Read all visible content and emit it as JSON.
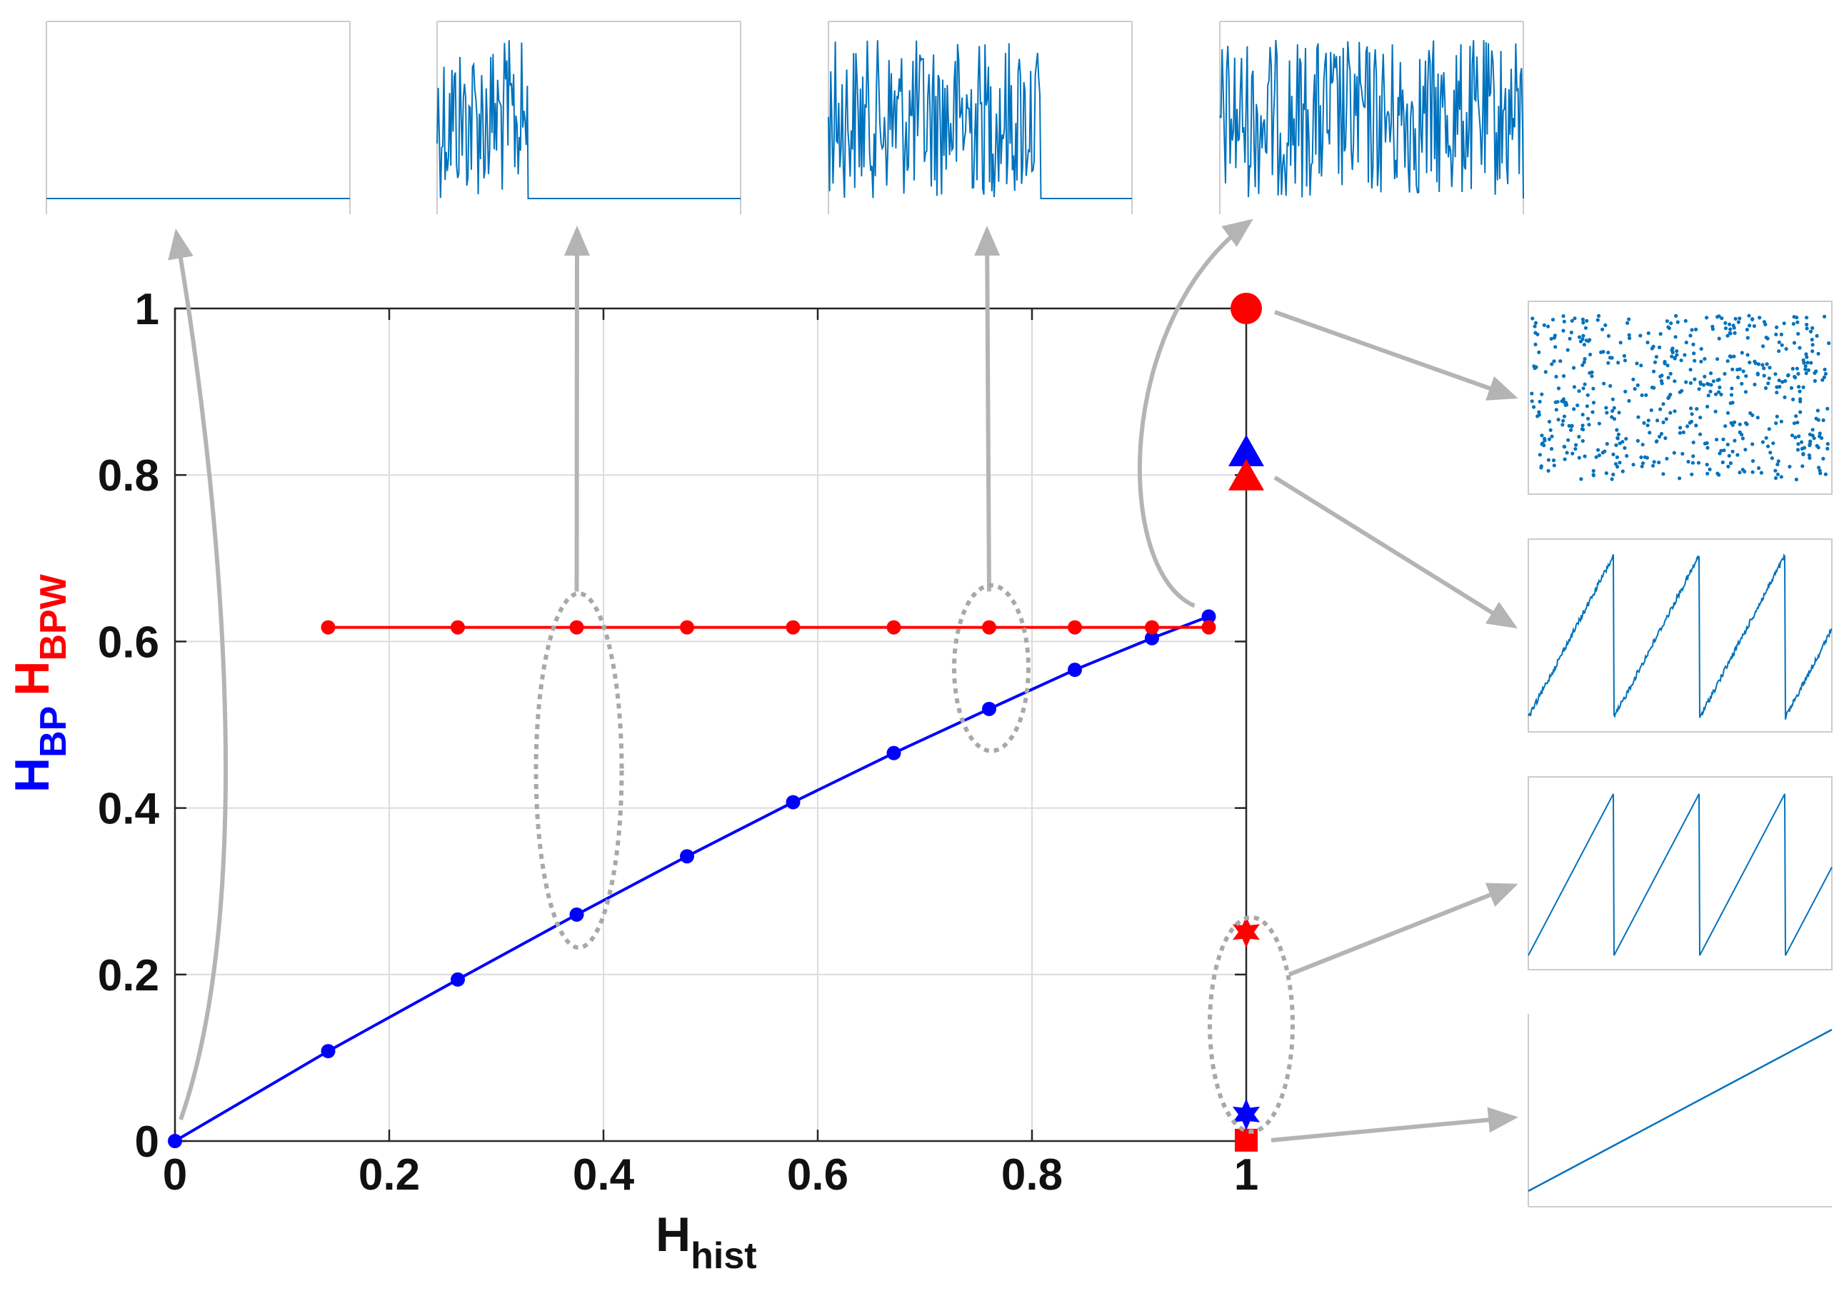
{
  "chart_data": {
    "type": "line",
    "xlabel": {
      "main": "H",
      "sub": "hist"
    },
    "ylabel": [
      {
        "main": "H",
        "sub": "BP",
        "color": "#0000ff"
      },
      {
        "main": "H",
        "sub": "BPW",
        "color": "#ff0000"
      }
    ],
    "xlim": [
      0,
      1
    ],
    "ylim": [
      0,
      1
    ],
    "x_ticks": [
      0,
      0.2,
      0.4,
      0.6,
      0.8,
      1
    ],
    "x_tick_labels": [
      "0",
      "0.2",
      "0.4",
      "0.6",
      "0.8",
      "1"
    ],
    "y_ticks": [
      0,
      0.2,
      0.4,
      0.6,
      0.8,
      1
    ],
    "y_tick_labels": [
      "0",
      "0.2",
      "0.4",
      "0.6",
      "0.8",
      "1"
    ],
    "grid": true,
    "series": [
      {
        "name": "H_BP",
        "color": "#0000ff",
        "marker": "circle",
        "x": [
          0,
          0.143,
          0.264,
          0.375,
          0.478,
          0.577,
          0.671,
          0.76,
          0.84,
          0.912,
          0.965
        ],
        "y": [
          0,
          0.108,
          0.194,
          0.272,
          0.342,
          0.407,
          0.466,
          0.519,
          0.566,
          0.604,
          0.63
        ]
      },
      {
        "name": "H_BPW",
        "color": "#ff0000",
        "marker": "circle",
        "x": [
          0.143,
          0.264,
          0.375,
          0.478,
          0.577,
          0.671,
          0.76,
          0.84,
          0.912,
          0.965
        ],
        "y": [
          0.617,
          0.617,
          0.617,
          0.617,
          0.617,
          0.617,
          0.617,
          0.617,
          0.617,
          0.617
        ]
      }
    ],
    "special_points": [
      {
        "name": "random-noise-bpw",
        "color": "#ff0000",
        "marker": "circle",
        "x": 1,
        "y": 1
      },
      {
        "name": "noisy-sawtooth-bp",
        "color": "#0000ff",
        "marker": "triangle",
        "x": 1,
        "y": 0.826
      },
      {
        "name": "noisy-sawtooth-bpw",
        "color": "#ff0000",
        "marker": "triangle",
        "x": 1,
        "y": 0.797
      },
      {
        "name": "sawtooth-bpw",
        "color": "#ff0000",
        "marker": "star",
        "x": 1,
        "y": 0.251
      },
      {
        "name": "sawtooth-bp",
        "color": "#0000ff",
        "marker": "star",
        "x": 1,
        "y": 0.032
      },
      {
        "name": "linear-ramp",
        "color": "#ff0000",
        "marker": "square",
        "x": 1,
        "y": 0.001
      }
    ],
    "top_insets": [
      {
        "name": "constant-signal",
        "active_fraction": 0.0,
        "points_to_x": 0
      },
      {
        "name": "partial-noise-30",
        "active_fraction": 0.3,
        "points_to_x": 0.375
      },
      {
        "name": "partial-noise-70",
        "active_fraction": 0.7,
        "points_to_x": 0.76
      },
      {
        "name": "full-noise",
        "active_fraction": 1.0,
        "points_to_x": 0.965
      }
    ],
    "right_insets": [
      {
        "name": "random-scatter",
        "kind": "scatter"
      },
      {
        "name": "noisy-sawtooth",
        "kind": "noisy-sawtooth"
      },
      {
        "name": "sawtooth",
        "kind": "sawtooth"
      },
      {
        "name": "linear-ramp",
        "kind": "ramp"
      }
    ]
  },
  "colors": {
    "blue": "#0000ff",
    "red": "#ff0000",
    "signal": "#0072bd",
    "grid": "#dcdcdc",
    "arrow": "#b4b4b4",
    "ellipse": "#a8a8a8",
    "axis": "#262626"
  }
}
